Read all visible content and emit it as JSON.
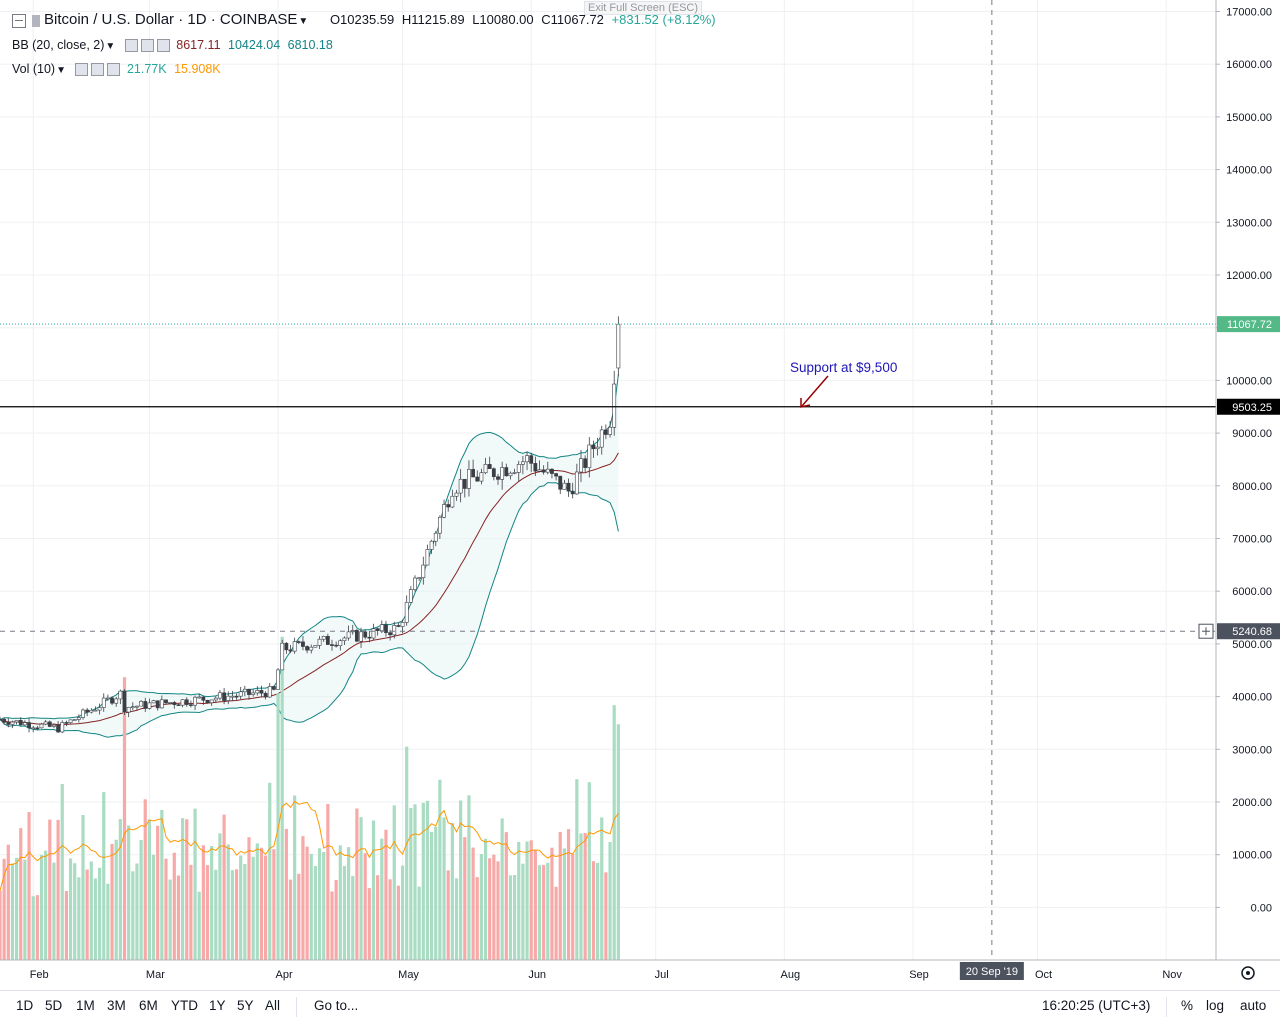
{
  "header": {
    "title": "Bitcoin / U.S. Dollar · 1D · COINBASE",
    "exit_fullscreen": "Exit Full Screen (ESC)",
    "ohlc": {
      "open": "O10235.59",
      "high": "H11215.89",
      "low": "L10080.00",
      "close": "C11067.72",
      "change": "+831.52 (+8.12%)"
    },
    "bb": {
      "label": "BB (20, close, 2)",
      "basis": "8617.11",
      "upper": "10424.04",
      "lower": "6810.18"
    },
    "vol": {
      "label": "Vol (10)",
      "value": "21.77K",
      "ma": "15.908K"
    }
  },
  "annotation": {
    "text": "Support at $9,500",
    "price": 9500
  },
  "price_labels": {
    "last": "11067.72",
    "line": "9503.25",
    "crosshair": "5240.68"
  },
  "time_label": "20 Sep '19",
  "bottom": {
    "ranges": [
      "1D",
      "5D",
      "1M",
      "3M",
      "6M",
      "YTD",
      "1Y",
      "5Y",
      "All"
    ],
    "goto": "Go to...",
    "clock": "16:20:25 (UTC+3)",
    "percent": "%",
    "log": "log",
    "auto": "auto"
  },
  "colors": {
    "up": "#26a69a",
    "down": "#ef5350",
    "bb_band": "#138484",
    "bb_basis": "#872323",
    "vol_up": "#a9dcc3",
    "vol_down": "#f7a9a7",
    "vol_ma": "#ff9800",
    "annotation": "#1f17b4",
    "arrow": "#990000"
  },
  "chart_data": {
    "type": "candlestick",
    "axes": {
      "y_ticks": [
        "17000.00",
        "16000.00",
        "15000.00",
        "14000.00",
        "13000.00",
        "12000.00",
        "11000.00",
        "10000.00",
        "9000.00",
        "8000.00",
        "7000.00",
        "6000.00",
        "5000.00",
        "4000.00",
        "3000.00",
        "2000.00",
        "1000.00",
        "0.00"
      ],
      "x_ticks": [
        "Feb",
        "Mar",
        "Apr",
        "May",
        "Jun",
        "Jul",
        "Aug",
        "Sep",
        "Oct",
        "Nov"
      ],
      "ylim": [
        -1200,
        17300
      ]
    },
    "series": [
      {
        "name": "BTCUSD",
        "segments": [
          {
            "from": "2019-01-24",
            "to": "2019-02-07",
            "start": 3570,
            "end": 3400
          },
          {
            "from": "2019-02-07",
            "to": "2019-02-23",
            "start": 3400,
            "end": 4100
          },
          {
            "from": "2019-02-23",
            "to": "2019-03-31",
            "start": 3800,
            "end": 4100
          },
          {
            "from": "2019-03-31",
            "to": "2019-04-02",
            "start": 4100,
            "end": 4900
          },
          {
            "from": "2019-04-02",
            "to": "2019-04-30",
            "start": 4900,
            "end": 5300
          },
          {
            "from": "2019-04-30",
            "to": "2019-05-13",
            "start": 5300,
            "end": 8000
          },
          {
            "from": "2019-05-13",
            "to": "2019-05-31",
            "start": 8000,
            "end": 8500
          },
          {
            "from": "2019-05-31",
            "to": "2019-06-10",
            "start": 8500,
            "end": 7900
          },
          {
            "from": "2019-06-10",
            "to": "2019-06-20",
            "start": 7900,
            "end": 9300
          },
          {
            "from": "2019-06-20",
            "to": "2019-06-22",
            "start": 9300,
            "end": 11067
          }
        ]
      },
      {
        "name": "Volume",
        "values": [
          "21.77K"
        ]
      }
    ]
  }
}
